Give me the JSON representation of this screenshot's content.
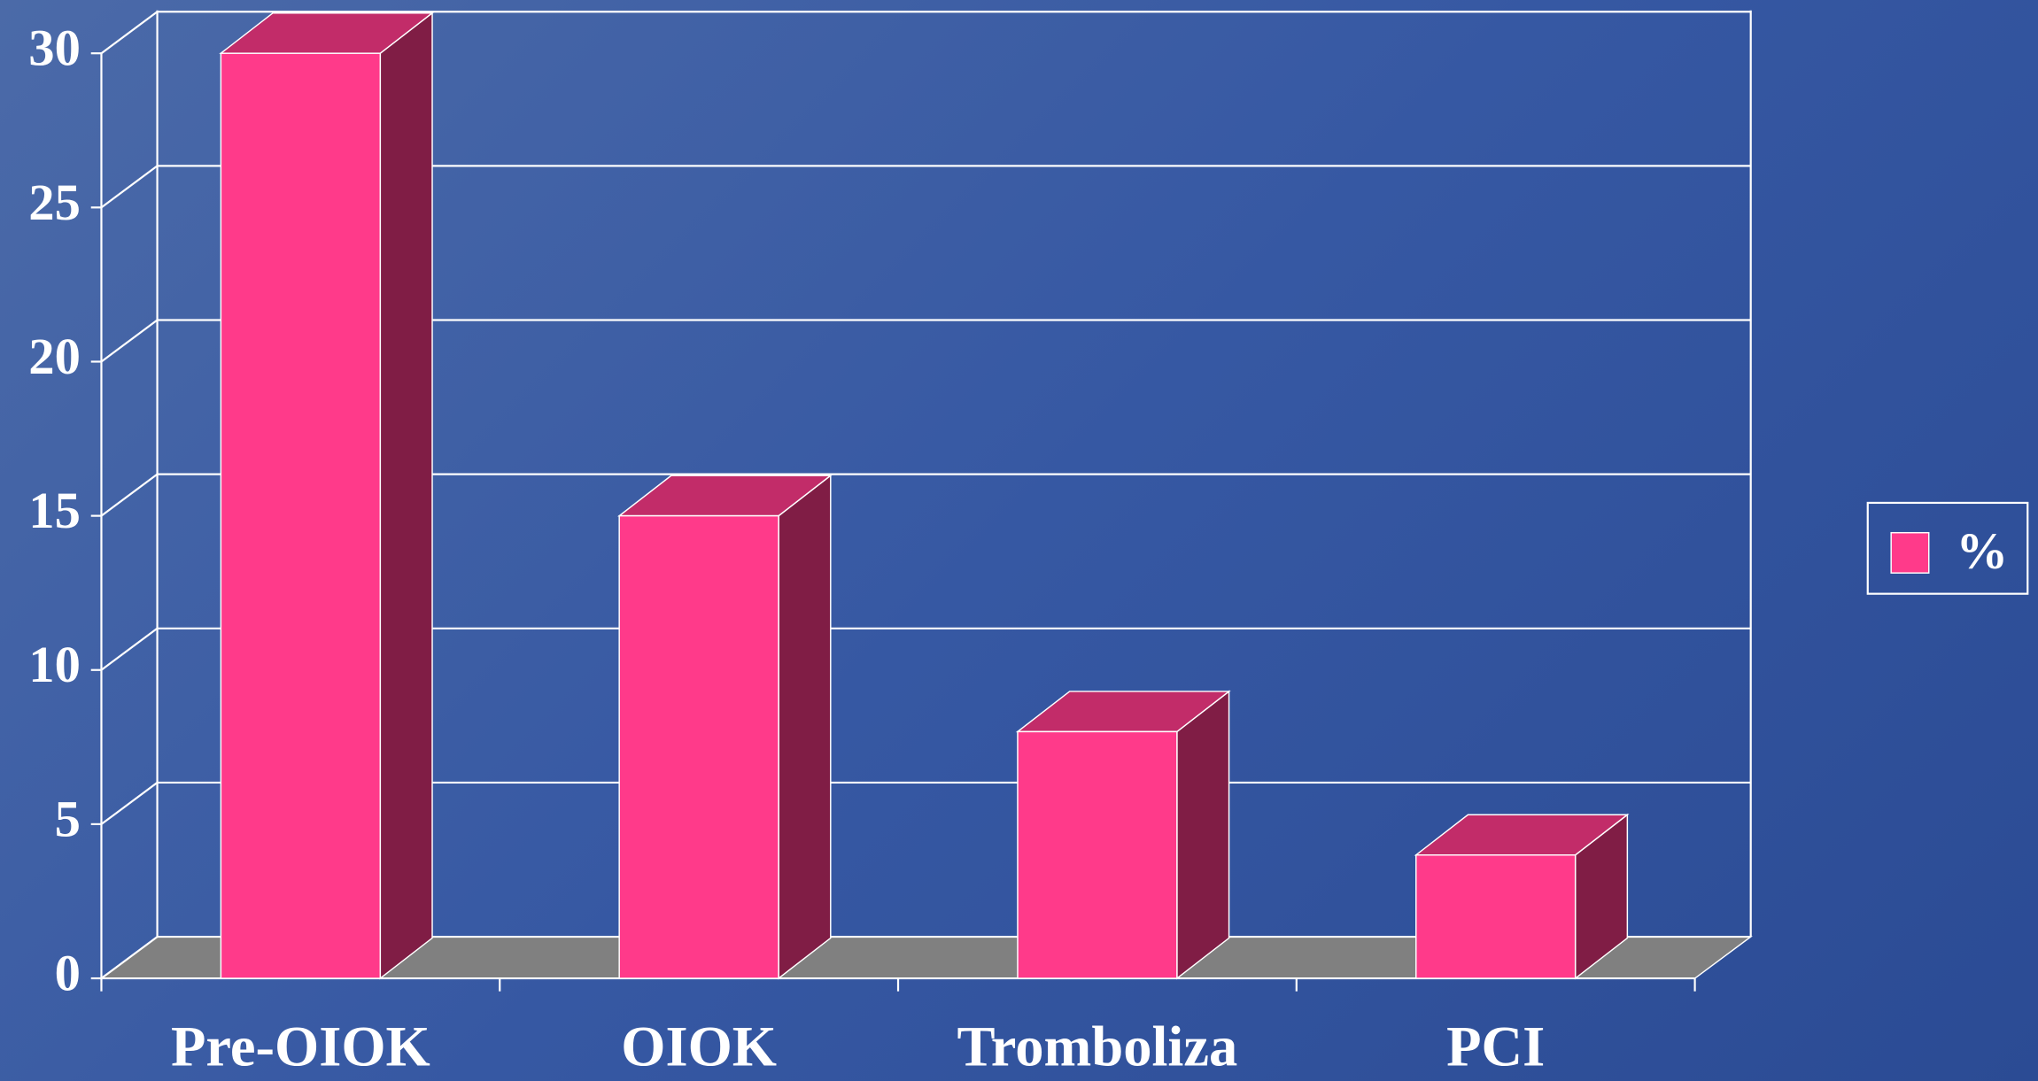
{
  "chart_data": {
    "type": "bar3d",
    "categories": [
      "Pre-OIOK",
      "OIOK",
      "Tromboliza",
      "PCI"
    ],
    "series": [
      {
        "name": "%",
        "color": "#ff3a8a",
        "values": [
          30,
          15,
          8,
          4
        ]
      }
    ],
    "ylim": [
      0,
      30
    ],
    "yticks": [
      0,
      5,
      10,
      15,
      20,
      25,
      30
    ],
    "grid": true,
    "legend": "right"
  }
}
